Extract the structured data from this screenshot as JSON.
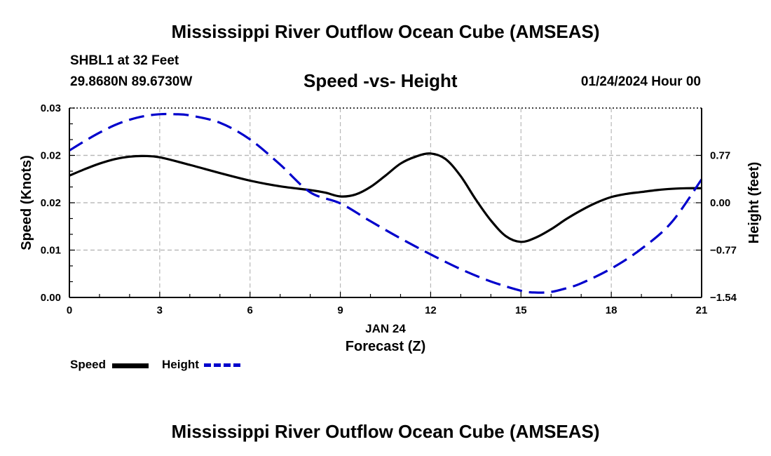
{
  "header": {
    "title": "Mississippi River Outflow Ocean Cube (AMSEAS)",
    "station": "SHBL1 at 32 Feet",
    "coordinates": "29.8680N  89.6730W",
    "subtitle": "Speed -vs- Height",
    "datetime": "01/24/2024 Hour 00"
  },
  "footer": {
    "title": "Mississippi River Outflow Ocean Cube (AMSEAS)"
  },
  "chart_data": {
    "type": "line",
    "xlabel": "Forecast (Z)",
    "date_label": "JAN 24",
    "x_ticks": [
      0,
      3,
      6,
      9,
      12,
      15,
      18,
      21
    ],
    "x_tick_labels": [
      "0",
      "3",
      "6",
      "9",
      "12",
      "15",
      "18",
      "21"
    ],
    "xlim": [
      0,
      21
    ],
    "y_left": {
      "label": "Speed (Knots)",
      "lim": [
        0,
        0.03
      ],
      "ticks": [
        0,
        0.0075,
        0.015,
        0.0225,
        0.03
      ],
      "tick_labels": [
        "0.00",
        "0.01",
        "0.02",
        "0.02",
        "0.03"
      ]
    },
    "y_right": {
      "label": "Height (feet)",
      "lim": [
        -1.54,
        1.54
      ],
      "ticks": [
        -1.54,
        -0.77,
        0.0,
        0.77
      ],
      "tick_labels": [
        "−1.54",
        "−0.77",
        "0.00",
        "0.77"
      ]
    },
    "grid": true,
    "series": [
      {
        "name": "Speed",
        "axis": "left",
        "color": "#000000",
        "style": "solid",
        "x": [
          0,
          0.5,
          1,
          1.5,
          2,
          2.5,
          3,
          4,
          5,
          6,
          7,
          8,
          8.5,
          9,
          9.5,
          10,
          10.5,
          11,
          11.5,
          12,
          12.5,
          13,
          13.5,
          14,
          14.5,
          15,
          15.5,
          16,
          16.5,
          17,
          17.5,
          18,
          18.5,
          19,
          19.5,
          20,
          20.5,
          21
        ],
        "values": [
          0.0193,
          0.0203,
          0.0212,
          0.0219,
          0.0223,
          0.0224,
          0.0222,
          0.021,
          0.0197,
          0.0185,
          0.0176,
          0.017,
          0.0166,
          0.016,
          0.0163,
          0.0175,
          0.0193,
          0.0212,
          0.0223,
          0.0228,
          0.0219,
          0.0192,
          0.0155,
          0.0122,
          0.0097,
          0.0088,
          0.0095,
          0.0108,
          0.0124,
          0.0138,
          0.015,
          0.0159,
          0.0164,
          0.0167,
          0.017,
          0.0172,
          0.0173,
          0.0173
        ]
      },
      {
        "name": "Height",
        "axis": "right",
        "color": "#0000cc",
        "style": "dashed",
        "x": [
          0,
          0.5,
          1,
          1.5,
          2,
          2.5,
          3,
          3.5,
          4,
          5,
          6,
          7,
          8,
          9,
          10,
          11,
          12,
          13,
          14,
          15,
          15.5,
          16,
          16.5,
          17,
          18,
          19,
          20,
          21
        ],
        "values": [
          0.85,
          1.0,
          1.14,
          1.26,
          1.35,
          1.41,
          1.44,
          1.44,
          1.42,
          1.3,
          1.03,
          0.62,
          0.17,
          -0.01,
          -0.3,
          -0.58,
          -0.84,
          -1.08,
          -1.28,
          -1.43,
          -1.46,
          -1.45,
          -1.39,
          -1.31,
          -1.07,
          -0.75,
          -0.32,
          0.38
        ]
      }
    ],
    "legend": [
      {
        "label": "Speed",
        "style": "solid",
        "color": "#000000"
      },
      {
        "label": "Height",
        "style": "dashed",
        "color": "#0000cc"
      }
    ]
  }
}
